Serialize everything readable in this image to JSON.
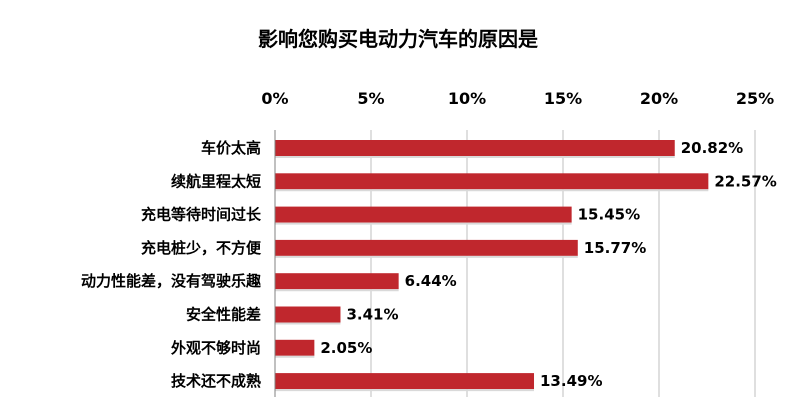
{
  "chart_data": {
    "type": "bar",
    "orientation": "horizontal",
    "title": "影响您购买电动力汽车的原因是",
    "xlabel": "",
    "ylabel": "",
    "categories": [
      "车价太高",
      "续航里程太短",
      "充电等待时间过长",
      "充电桩少，不方便",
      "动力性能差，没有驾驶乐趣",
      "安全性能差",
      "外观不够时尚",
      "技术还不成熟"
    ],
    "values": [
      20.82,
      22.57,
      15.45,
      15.77,
      6.44,
      3.41,
      2.05,
      13.49
    ],
    "data_labels": [
      "20.82%",
      "22.57%",
      "15.45%",
      "15.77%",
      "6.44%",
      "3.41%",
      "2.05%",
      "13.49%"
    ],
    "xlim": [
      0,
      25
    ],
    "ticks": [
      0,
      5,
      10,
      15,
      20,
      25
    ],
    "tick_labels": [
      "0%",
      "5%",
      "10%",
      "15%",
      "20%",
      "25%"
    ],
    "x_axis_position": "top",
    "grid": true,
    "legend": "none",
    "bar_color": "#c0272d"
  }
}
